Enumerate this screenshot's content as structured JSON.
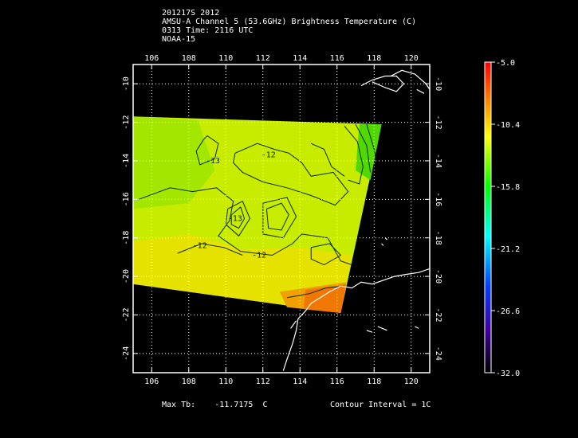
{
  "header": {
    "line1": "201217S 2012",
    "line2": "AMSU-A Channel 5 (53.6GHz) Brightness Temperature (C)",
    "line3": "0313 Time: 2116 UTC",
    "line4": "NOAA-15"
  },
  "footer": {
    "max_label": "Max Tb:",
    "max_value": "-11.7175",
    "max_unit": "C",
    "contour_interval": "Contour Interval = 1C"
  },
  "chart_data": {
    "type": "heatmap",
    "xlim": [
      105,
      121
    ],
    "ylim": [
      -25,
      -9
    ],
    "x_ticks": [
      106,
      108,
      110,
      112,
      114,
      116,
      118,
      120
    ],
    "y_ticks": [
      -10,
      -12,
      -14,
      -16,
      -18,
      -20,
      -22,
      -24
    ],
    "x_tick_labels": [
      "106",
      "108",
      "110",
      "112",
      "114",
      "116",
      "118",
      "120"
    ],
    "y_tick_labels": [
      "-10",
      "-12",
      "-14",
      "-16",
      "-18",
      "-20",
      "-22",
      "-24"
    ],
    "grid": true,
    "colorbar": {
      "min": -32.0,
      "max": -5.0,
      "tick_values": [
        -5.0,
        -10.4,
        -15.8,
        -21.2,
        -26.6,
        -32.0
      ],
      "tick_labels": [
        "-5.0",
        "-10.4",
        "-15.8",
        "-21.2",
        "-26.6",
        "-32.0"
      ]
    },
    "swath_corners_lonlat": [
      [
        105.0,
        -11.7
      ],
      [
        118.4,
        -12.1
      ],
      [
        116.2,
        -21.9
      ],
      [
        105.0,
        -20.4
      ]
    ],
    "contour_labels": [
      {
        "lon": 109.3,
        "lat": -14.0,
        "text": "-13"
      },
      {
        "lon": 112.3,
        "lat": -13.7,
        "text": "-12"
      },
      {
        "lon": 108.6,
        "lat": -18.4,
        "text": "-12"
      },
      {
        "lon": 110.5,
        "lat": -17.0,
        "text": "-13"
      },
      {
        "lon": 111.8,
        "lat": -18.9,
        "text": "-12"
      }
    ]
  },
  "colors": {
    "coast": "#ffffff",
    "contour": "#0a2a00",
    "grid": "#ffffff"
  }
}
